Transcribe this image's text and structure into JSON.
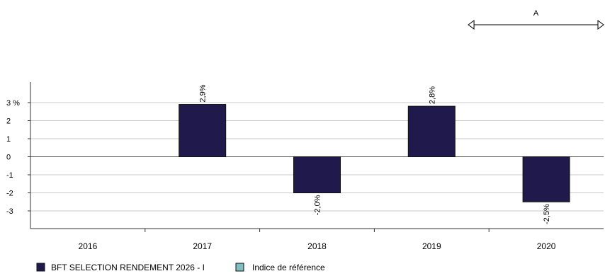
{
  "chart_data": {
    "type": "bar",
    "categories": [
      "2016",
      "2017",
      "2018",
      "2019",
      "2020"
    ],
    "series": [
      {
        "name": "BFT SELECTION RENDEMENT 2026 - I",
        "values": [
          null,
          2.9,
          -2.0,
          2.8,
          -2.5
        ],
        "color": "#1f1a4b"
      },
      {
        "name": "Indice de référence",
        "values": [
          null,
          null,
          null,
          null,
          null
        ],
        "color": "#7fbfbf"
      }
    ],
    "data_labels": [
      "",
      "2,9%",
      "-2,0%",
      "2,8%",
      "-2,5%"
    ],
    "y_ticks": [
      {
        "value": 3,
        "label": "3 %"
      },
      {
        "value": 2,
        "label": "2"
      },
      {
        "value": 1,
        "label": "1"
      },
      {
        "value": 0,
        "label": "0"
      },
      {
        "value": -1,
        "label": "-1"
      },
      {
        "value": -2,
        "label": "-2"
      },
      {
        "value": -3,
        "label": "-3"
      }
    ],
    "ylim": [
      -4,
      4
    ],
    "period_marker": {
      "label": "A",
      "from": "2019",
      "to": "2020"
    },
    "grid": true,
    "legend_position": "bottom-left"
  }
}
